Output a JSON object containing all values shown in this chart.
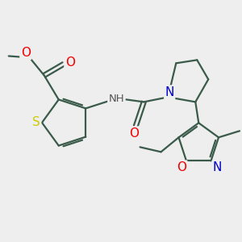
{
  "background_color": "#eeeeee",
  "bond_color": "#3a5a4a",
  "bond_lw": 1.6,
  "atom_colors": {
    "S": "#cccc00",
    "O": "#ee0000",
    "N": "#0000cc",
    "H": "#555555",
    "C": "#3a5a4a"
  },
  "figsize": [
    3.0,
    3.0
  ],
  "dpi": 100,
  "xlim": [
    0,
    300
  ],
  "ylim": [
    0,
    300
  ]
}
